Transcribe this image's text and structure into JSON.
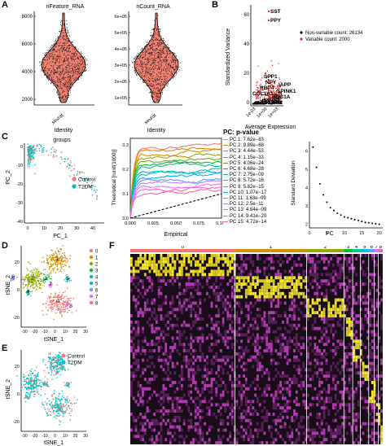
{
  "panels": {
    "A": {
      "label": "A",
      "violins": [
        {
          "title": "nFeature_RNA",
          "yticks": [
            "8000",
            "6000",
            "4000",
            "2000"
          ],
          "xtick": "seurat",
          "xlabel": "Identity",
          "chart_data": {
            "type": "violin",
            "categories": [
              "seurat"
            ],
            "ylim": [
              1800,
              8500
            ]
          }
        },
        {
          "title": "nCount_RNA",
          "yticks": [
            "6e+05",
            "5e+05",
            "4e+05",
            "3e+05",
            "2e+05",
            "1e+05"
          ],
          "xtick": "seurat",
          "xlabel": "Identity",
          "chart_data": {
            "type": "violin",
            "categories": [
              "seurat"
            ],
            "ylim": [
              70000,
              620000
            ]
          }
        }
      ]
    },
    "B": {
      "label": "B",
      "ylabel": "Standardized Variance",
      "xlabel": "Average Expression",
      "yticks": [
        "60",
        "40",
        "20",
        "0"
      ],
      "xticks": [
        "1e-03",
        "1e+00",
        "1e+03"
      ],
      "legend": [
        "Non-variable count: 26134",
        "Variable count: 2000"
      ],
      "genes": [
        "SST",
        "PPY",
        "SPP1",
        "NPY",
        "RBP4",
        "IAPP",
        "COL1A1",
        "SPINK1",
        "REG1A",
        "LCN2"
      ],
      "colors": {
        "nonvariable": "#000000",
        "variable": "#ee2222"
      },
      "chart_data": {
        "type": "scatter",
        "series": [
          {
            "name": "Non-variable count: 26134"
          },
          {
            "name": "Variable count: 2000"
          }
        ],
        "ylim": [
          0,
          65
        ]
      }
    },
    "C": {
      "label": "C",
      "pca": {
        "title": "groups",
        "xlabel": "PC_1",
        "ylabel": "PC_2",
        "xticks": [
          "0",
          "10",
          "20",
          "30",
          "40"
        ],
        "yticks": [
          "0",
          "-10",
          "-20",
          "-30",
          "-40"
        ],
        "legend": [
          "Control",
          "T2DM"
        ],
        "colors": {
          "Control": "#f8766d",
          "T2DM": "#00bfc4"
        },
        "chart_data": {
          "type": "scatter",
          "xlim": [
            -3,
            45
          ],
          "ylim": [
            -42,
            3
          ]
        }
      },
      "jackstraw": {
        "xlabel": "Empirical",
        "ylabel": "Theoretical [runif(1000)]",
        "xticks": [
          "0.000",
          "0.025",
          "0.050",
          "0.075",
          "0.100"
        ],
        "yticks": [
          "0.3",
          "0.2",
          "0.1",
          "0.0"
        ],
        "legend_title": "PC: p-value",
        "pcs": [
          {
            "label": "PC 1: 7.62e−83",
            "color": "#f8766d"
          },
          {
            "label": "PC 2: 9.89e−68",
            "color": "#e58700"
          },
          {
            "label": "PC 3: 4.44e−53",
            "color": "#c99800"
          },
          {
            "label": "PC 4: 1.15e−33",
            "color": "#a3a500"
          },
          {
            "label": "PC 5: 4.06e−24",
            "color": "#6bb100"
          },
          {
            "label": "PC 6: 4.68e−28",
            "color": "#00ba38"
          },
          {
            "label": "PC 7: 2.75e−09",
            "color": "#00bf7d"
          },
          {
            "label": "PC 8: 5.72e−16",
            "color": "#00c0af"
          },
          {
            "label": "PC 9: 5.82e−15",
            "color": "#00bcd8"
          },
          {
            "label": "PC 10: 1.07e−17",
            "color": "#00b0f6"
          },
          {
            "label": "PC 11: 1.63e−09",
            "color": "#619cff"
          },
          {
            "label": "PC 12: 2.5e−11",
            "color": "#b983ff"
          },
          {
            "label": "PC 13: 4.64e−09",
            "color": "#e76bf3"
          },
          {
            "label": "PC 14: 9.41e−20",
            "color": "#fd61d1"
          },
          {
            "label": "PC 15: 4.72e−14",
            "color": "#ff67a4"
          }
        ],
        "chart_data": {
          "type": "line",
          "xlim": [
            0,
            0.1
          ],
          "ylim": [
            0,
            0.32
          ]
        }
      },
      "elbow": {
        "ylabel": "Standard Deviation",
        "xlabel": "PC",
        "xticks": [
          "0",
          "5",
          "10",
          "15",
          "20"
        ],
        "yticks": [
          "6",
          "5",
          "4",
          "3",
          "2"
        ],
        "chart_data": {
          "type": "scatter",
          "x": [
            1,
            2,
            3,
            4,
            5,
            6,
            7,
            8,
            9,
            10,
            11,
            12,
            13,
            14,
            15,
            16,
            17,
            18,
            19,
            20
          ],
          "values": [
            6.2,
            5.1,
            4.2,
            3.6,
            3.2,
            2.9,
            2.75,
            2.6,
            2.5,
            2.4,
            2.35,
            2.3,
            2.25,
            2.2,
            2.15,
            2.1,
            2.08,
            2.05,
            2.02,
            2.0
          ],
          "xlim": [
            0,
            21
          ],
          "ylim": [
            1.8,
            6.5
          ]
        }
      }
    },
    "D": {
      "label": "D",
      "xlabel": "tSNE_1",
      "ylabel": "tSNE_2",
      "xticks": [
        "-30",
        "-20",
        "-10",
        "0",
        "10",
        "20",
        "30"
      ],
      "yticks": [
        "20",
        "0",
        "-20"
      ],
      "clusters": [
        "0",
        "1",
        "2",
        "3",
        "4",
        "5",
        "6",
        "7",
        "8"
      ],
      "cluster_labels": [
        "1",
        "2",
        "0",
        "3",
        "4",
        "5",
        "6",
        "7",
        "8"
      ],
      "colors": [
        "#f8766d",
        "#d39200",
        "#93aa00",
        "#00ba38",
        "#00c19f",
        "#00b9e3",
        "#619cff",
        "#db72fb",
        "#ff61c3"
      ]
    },
    "E": {
      "label": "E",
      "xlabel": "tSNE_1",
      "ylabel": "tSNE_2",
      "xticks": [
        "-30",
        "-20",
        "-10",
        "0",
        "10",
        "20",
        "30"
      ],
      "yticks": [
        "20",
        "0",
        "-20"
      ],
      "legend": [
        "Control",
        "T2DM"
      ],
      "colors": {
        "Control": "#f8766d",
        "T2DM": "#00bfc4"
      }
    },
    "F": {
      "label": "F",
      "clusters": [
        "0",
        "1",
        "2",
        "3",
        "4",
        "5",
        "6",
        "7",
        "8"
      ],
      "cluster_colors": [
        "#f8766d",
        "#d39200",
        "#93aa00",
        "#00ba38",
        "#00c19f",
        "#00b9e3",
        "#619cff",
        "#db72fb",
        "#ff61c3"
      ],
      "widths": [
        38,
        26,
        13.5,
        3.2,
        2.8,
        3,
        2,
        1.5,
        1.6
      ],
      "chart_data": {
        "type": "heatmap"
      }
    }
  }
}
